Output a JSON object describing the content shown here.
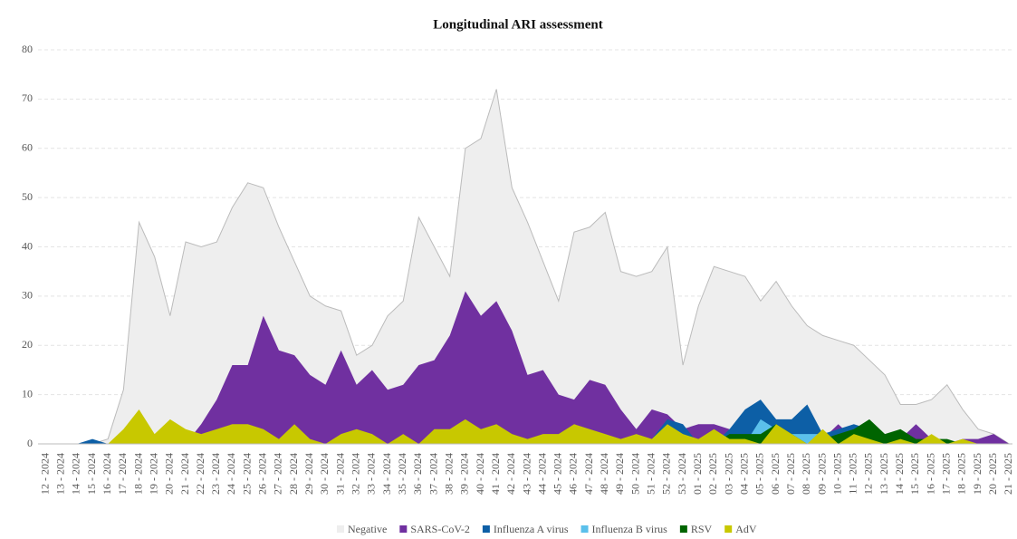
{
  "chart_data": {
    "type": "area",
    "title": "Longitudinal ARI assessment",
    "categories": [
      "12 - 2024",
      "13 - 2024",
      "14 - 2024",
      "15 - 2024",
      "16 - 2024",
      "17 - 2024",
      "18 - 2024",
      "19 - 2024",
      "20 - 2024",
      "21 - 2024",
      "22 - 2024",
      "23 - 2024",
      "24 - 2024",
      "25 - 2024",
      "26 - 2024",
      "27 - 2024",
      "28 - 2024",
      "29 - 2024",
      "30 - 2024",
      "31 - 2024",
      "32 - 2024",
      "33 - 2024",
      "34 - 2024",
      "35 - 2024",
      "36 - 2024",
      "37 - 2024",
      "38 - 2024",
      "39 - 2024",
      "40 - 2024",
      "41 - 2024",
      "42 - 2024",
      "43 - 2024",
      "44 - 2024",
      "45 - 2024",
      "46 - 2024",
      "47 - 2024",
      "48 - 2024",
      "49 - 2024",
      "50 - 2024",
      "51 - 2024",
      "52 - 2024",
      "53 - 2024",
      "01 - 2025",
      "02 - 2025",
      "03 - 2025",
      "04 - 2025",
      "05 - 2025",
      "06 - 2025",
      "07 - 2025",
      "08 - 2025",
      "09 - 2025",
      "10 - 2025",
      "11 - 2025",
      "12 - 2025",
      "13 - 2025",
      "14 - 2025",
      "15 - 2025",
      "16 - 2025",
      "17 - 2025",
      "18 - 2025",
      "19 - 2025",
      "20 - 2025",
      "21 - 2025"
    ],
    "series": [
      {
        "name": "Negative",
        "color": "#eeeeee",
        "values": [
          0,
          0,
          0,
          0,
          1,
          11,
          45,
          38,
          26,
          41,
          40,
          41,
          48,
          53,
          52,
          44,
          37,
          30,
          28,
          27,
          18,
          20,
          26,
          29,
          46,
          40,
          34,
          60,
          62,
          72,
          52,
          45,
          37,
          29,
          43,
          44,
          47,
          35,
          34,
          35,
          40,
          16,
          28,
          36,
          35,
          34,
          29,
          33,
          28,
          24,
          22,
          21,
          20,
          17,
          14,
          8,
          8,
          9,
          12,
          7,
          3,
          2,
          0
        ]
      },
      {
        "name": "SARS-CoV-2",
        "color": "#7030a0",
        "values": [
          0,
          0,
          0,
          0,
          0,
          0,
          0,
          0,
          0,
          0,
          4,
          9,
          16,
          16,
          26,
          19,
          18,
          14,
          12,
          19,
          12,
          15,
          11,
          12,
          16,
          17,
          22,
          31,
          26,
          29,
          23,
          14,
          15,
          10,
          9,
          13,
          12,
          7,
          3,
          7,
          6,
          3,
          4,
          4,
          3,
          2,
          1,
          1,
          1,
          1,
          1,
          4,
          1,
          3,
          2,
          1,
          4,
          1,
          0,
          1,
          1,
          2,
          0
        ]
      },
      {
        "name": "Influenza A virus",
        "color": "#0d5fa6",
        "values": [
          0,
          0,
          0,
          1,
          0,
          0,
          0,
          0,
          0,
          0,
          0,
          0,
          0,
          0,
          0,
          0,
          0,
          0,
          0,
          0,
          0,
          0,
          0,
          0,
          0,
          0,
          0,
          0,
          0,
          0,
          0,
          0,
          0,
          0,
          0,
          0,
          0,
          0,
          0,
          1,
          5,
          4,
          0,
          0,
          3,
          7,
          9,
          5,
          5,
          8,
          2,
          3,
          4,
          3,
          0,
          0,
          0,
          0,
          0,
          0,
          0,
          0,
          0
        ]
      },
      {
        "name": "Influenza B virus",
        "color": "#5bc0eb",
        "values": [
          0,
          0,
          0,
          0,
          0,
          0,
          0,
          0,
          0,
          0,
          0,
          0,
          0,
          0,
          0,
          0,
          0,
          0,
          0,
          0,
          0,
          0,
          0,
          0,
          0,
          0,
          0,
          0,
          0,
          0,
          0,
          0,
          0,
          0,
          0,
          0,
          0,
          0,
          0,
          0,
          0,
          0,
          0,
          0,
          0,
          0,
          5,
          3,
          2,
          2,
          2,
          0,
          0,
          0,
          0,
          0,
          0,
          0,
          0,
          0,
          0,
          0,
          0
        ]
      },
      {
        "name": "RSV",
        "color": "#006400",
        "values": [
          0,
          0,
          0,
          0,
          0,
          0,
          0,
          0,
          0,
          0,
          0,
          0,
          0,
          0,
          0,
          0,
          0,
          0,
          0,
          0,
          0,
          0,
          0,
          0,
          0,
          0,
          0,
          0,
          0,
          0,
          0,
          0,
          0,
          0,
          0,
          0,
          0,
          0,
          0,
          0,
          0,
          0,
          0,
          0,
          2,
          2,
          2,
          4,
          2,
          0,
          1,
          2,
          3,
          5,
          2,
          3,
          1,
          1,
          1,
          0,
          0,
          0,
          0
        ]
      },
      {
        "name": "AdV",
        "color": "#c8c800",
        "values": [
          0,
          0,
          0,
          0,
          0,
          3,
          7,
          2,
          5,
          3,
          2,
          3,
          4,
          4,
          3,
          1,
          4,
          1,
          0,
          2,
          3,
          2,
          0,
          2,
          0,
          3,
          3,
          5,
          3,
          4,
          2,
          1,
          2,
          2,
          4,
          3,
          2,
          1,
          2,
          1,
          4,
          2,
          1,
          3,
          1,
          1,
          0,
          4,
          2,
          0,
          3,
          0,
          2,
          1,
          0,
          1,
          0,
          2,
          0,
          1,
          0,
          0,
          0
        ]
      }
    ],
    "ylim": [
      0,
      80
    ],
    "yticks": [
      0,
      10,
      20,
      30,
      40,
      50,
      60,
      70,
      80
    ],
    "grid": true,
    "legend": "bottom"
  }
}
